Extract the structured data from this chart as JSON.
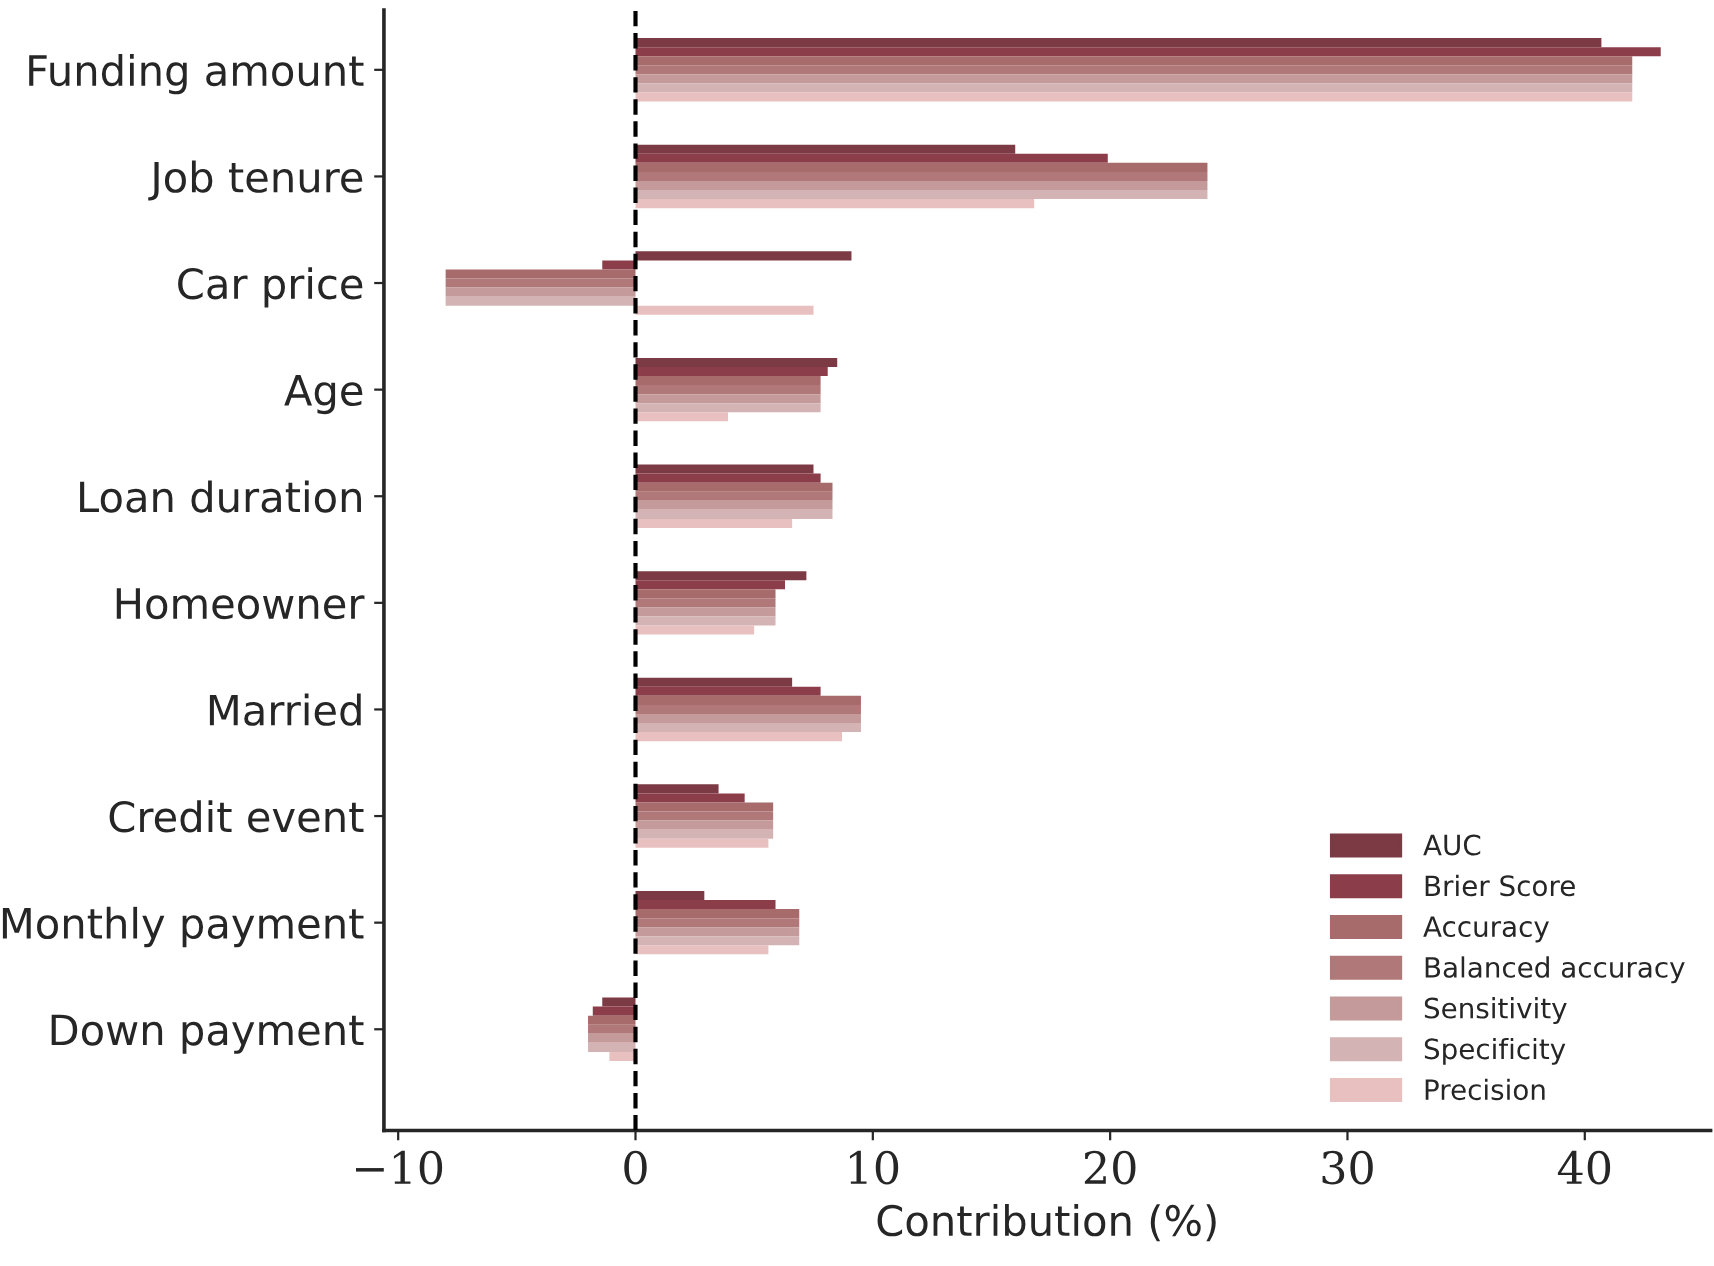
{
  "chart_data": {
    "type": "bar",
    "orientation": "horizontal",
    "xlabel": "Contribution (%)",
    "categories": [
      "Funding amount",
      "Job tenure",
      "Car price",
      "Age",
      "Loan duration",
      "Homeowner",
      "Married",
      "Credit event",
      "Monthly payment",
      "Down payment"
    ],
    "series": [
      {
        "name": "AUC",
        "color": "#7b3a44",
        "values": [
          40.7,
          16.0,
          9.1,
          8.5,
          7.5,
          7.2,
          6.6,
          3.5,
          2.9,
          -1.4
        ]
      },
      {
        "name": "Brier Score",
        "color": "#8b3e4a",
        "values": [
          43.2,
          19.9,
          -1.4,
          8.1,
          7.8,
          6.3,
          7.8,
          4.6,
          5.9,
          -1.8
        ]
      },
      {
        "name": "Accuracy",
        "color": "#a86b6c",
        "values": [
          42.0,
          24.1,
          -8.0,
          7.8,
          8.3,
          5.9,
          9.5,
          5.8,
          6.9,
          -2.0
        ]
      },
      {
        "name": "Balanced accuracy",
        "color": "#b07878",
        "values": [
          42.0,
          24.1,
          -8.0,
          7.8,
          8.3,
          5.9,
          9.5,
          5.8,
          6.9,
          -2.0
        ]
      },
      {
        "name": "Sensitivity",
        "color": "#c49a9a",
        "values": [
          42.0,
          24.1,
          -8.0,
          7.8,
          8.3,
          5.9,
          9.5,
          5.8,
          6.9,
          -2.0
        ]
      },
      {
        "name": "Specificity",
        "color": "#d4b3b4",
        "values": [
          42.0,
          24.1,
          -8.0,
          7.8,
          8.3,
          5.9,
          9.5,
          5.8,
          6.9,
          -2.0
        ]
      },
      {
        "name": "Precision",
        "color": "#e8c0c0",
        "values": [
          42.0,
          16.8,
          7.5,
          3.9,
          6.6,
          5.0,
          8.7,
          5.6,
          5.6,
          -1.1
        ]
      }
    ],
    "xlim": [
      -10.6,
      45.3
    ],
    "xticks": [
      {
        "value": -10,
        "label": "−10"
      },
      0,
      10,
      20,
      30,
      40
    ],
    "ref_lines": [
      {
        "axis": "x",
        "value": 0,
        "color": "#000000",
        "line_style": "dashed"
      }
    ],
    "grid": false,
    "legend": "bottom right"
  }
}
